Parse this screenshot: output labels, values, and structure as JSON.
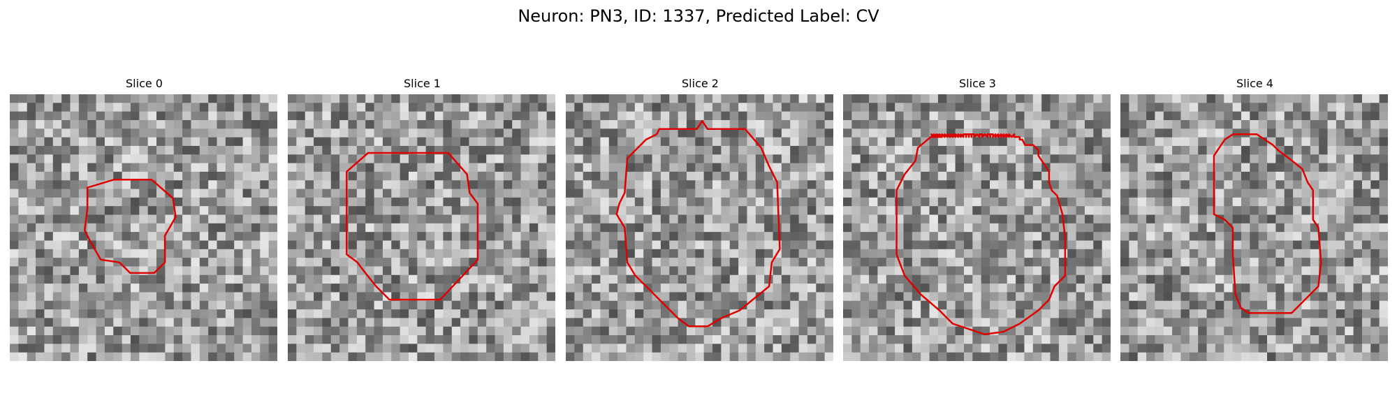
{
  "figure": {
    "title": "Neuron: PN3, ID: 1337, Predicted Label: CV"
  },
  "panels": [
    {
      "title": "Slice 0",
      "seed": 11,
      "grid": 31,
      "contour_color": "#e00000",
      "contour": [
        [
          0.29,
          0.35
        ],
        [
          0.39,
          0.32
        ],
        [
          0.53,
          0.32
        ],
        [
          0.61,
          0.39
        ],
        [
          0.62,
          0.46
        ],
        [
          0.58,
          0.53
        ],
        [
          0.58,
          0.63
        ],
        [
          0.54,
          0.67
        ],
        [
          0.45,
          0.67
        ],
        [
          0.41,
          0.63
        ],
        [
          0.34,
          0.62
        ],
        [
          0.3,
          0.55
        ],
        [
          0.28,
          0.51
        ],
        [
          0.29,
          0.43
        ]
      ]
    },
    {
      "title": "Slice 1",
      "seed": 23,
      "grid": 31,
      "contour_color": "#e00000",
      "contour": [
        [
          0.22,
          0.29
        ],
        [
          0.3,
          0.22
        ],
        [
          0.6,
          0.22
        ],
        [
          0.67,
          0.3
        ],
        [
          0.68,
          0.37
        ],
        [
          0.71,
          0.41
        ],
        [
          0.71,
          0.62
        ],
        [
          0.57,
          0.77
        ],
        [
          0.38,
          0.77
        ],
        [
          0.33,
          0.72
        ],
        [
          0.29,
          0.67
        ],
        [
          0.26,
          0.63
        ],
        [
          0.22,
          0.6
        ]
      ]
    },
    {
      "title": "Slice 2",
      "seed": 37,
      "grid": 31,
      "contour_color": "#e00000",
      "contour": [
        [
          0.23,
          0.24
        ],
        [
          0.3,
          0.17
        ],
        [
          0.34,
          0.15
        ],
        [
          0.35,
          0.13
        ],
        [
          0.49,
          0.13
        ],
        [
          0.51,
          0.1
        ],
        [
          0.53,
          0.13
        ],
        [
          0.67,
          0.13
        ],
        [
          0.73,
          0.2
        ],
        [
          0.76,
          0.27
        ],
        [
          0.79,
          0.33
        ],
        [
          0.8,
          0.58
        ],
        [
          0.77,
          0.63
        ],
        [
          0.76,
          0.72
        ],
        [
          0.65,
          0.81
        ],
        [
          0.58,
          0.84
        ],
        [
          0.53,
          0.87
        ],
        [
          0.46,
          0.87
        ],
        [
          0.42,
          0.84
        ],
        [
          0.4,
          0.82
        ],
        [
          0.26,
          0.68
        ],
        [
          0.23,
          0.63
        ],
        [
          0.22,
          0.5
        ],
        [
          0.19,
          0.45
        ],
        [
          0.2,
          0.41
        ],
        [
          0.22,
          0.37
        ]
      ]
    },
    {
      "title": "Slice 3",
      "seed": 53,
      "grid": 31,
      "contour_color": "#e00000",
      "contour": [
        [
          0.23,
          0.3
        ],
        [
          0.27,
          0.25
        ],
        [
          0.28,
          0.2
        ],
        [
          0.34,
          0.15
        ],
        [
          0.34,
          0.16
        ],
        [
          0.35,
          0.16
        ],
        [
          0.36,
          0.16
        ],
        [
          0.35,
          0.16
        ],
        [
          0.35,
          0.16
        ],
        [
          0.36,
          0.15
        ],
        [
          0.34,
          0.16
        ],
        [
          0.35,
          0.16
        ],
        [
          0.34,
          0.16
        ],
        [
          0.34,
          0.16
        ],
        [
          0.34,
          0.16
        ],
        [
          0.34,
          0.16
        ],
        [
          0.35,
          0.15
        ],
        [
          0.33,
          0.16
        ],
        [
          0.34,
          0.16
        ],
        [
          0.34,
          0.16
        ],
        [
          0.34,
          0.16
        ],
        [
          0.34,
          0.16
        ],
        [
          0.33,
          0.15
        ],
        [
          0.34,
          0.16
        ],
        [
          0.34,
          0.16
        ],
        [
          0.34,
          0.15
        ],
        [
          0.34,
          0.16
        ],
        [
          0.35,
          0.15
        ],
        [
          0.34,
          0.16
        ],
        [
          0.35,
          0.16
        ],
        [
          0.35,
          0.15
        ],
        [
          0.36,
          0.16
        ],
        [
          0.35,
          0.15
        ],
        [
          0.35,
          0.16
        ],
        [
          0.36,
          0.16
        ],
        [
          0.36,
          0.15
        ],
        [
          0.36,
          0.16
        ],
        [
          0.37,
          0.16
        ],
        [
          0.36,
          0.15
        ],
        [
          0.37,
          0.16
        ],
        [
          0.37,
          0.16
        ],
        [
          0.37,
          0.15
        ],
        [
          0.38,
          0.16
        ],
        [
          0.37,
          0.15
        ],
        [
          0.38,
          0.16
        ],
        [
          0.38,
          0.16
        ],
        [
          0.38,
          0.15
        ],
        [
          0.39,
          0.16
        ],
        [
          0.38,
          0.15
        ],
        [
          0.39,
          0.16
        ],
        [
          0.39,
          0.15
        ],
        [
          0.39,
          0.15
        ],
        [
          0.4,
          0.16
        ],
        [
          0.4,
          0.15
        ],
        [
          0.4,
          0.16
        ],
        [
          0.4,
          0.15
        ],
        [
          0.41,
          0.16
        ],
        [
          0.41,
          0.15
        ],
        [
          0.41,
          0.15
        ],
        [
          0.42,
          0.16
        ],
        [
          0.42,
          0.15
        ],
        [
          0.42,
          0.15
        ],
        [
          0.43,
          0.16
        ],
        [
          0.43,
          0.15
        ],
        [
          0.43,
          0.15
        ],
        [
          0.44,
          0.16
        ],
        [
          0.44,
          0.15
        ],
        [
          0.44,
          0.15
        ],
        [
          0.45,
          0.16
        ],
        [
          0.45,
          0.15
        ],
        [
          0.45,
          0.15
        ],
        [
          0.46,
          0.15
        ],
        [
          0.46,
          0.16
        ],
        [
          0.46,
          0.15
        ],
        [
          0.47,
          0.15
        ],
        [
          0.47,
          0.16
        ],
        [
          0.47,
          0.15
        ],
        [
          0.48,
          0.15
        ],
        [
          0.48,
          0.16
        ],
        [
          0.48,
          0.15
        ],
        [
          0.49,
          0.15
        ],
        [
          0.49,
          0.15
        ],
        [
          0.49,
          0.16
        ],
        [
          0.5,
          0.15
        ],
        [
          0.5,
          0.15
        ],
        [
          0.5,
          0.15
        ],
        [
          0.51,
          0.16
        ],
        [
          0.51,
          0.15
        ],
        [
          0.51,
          0.15
        ],
        [
          0.52,
          0.15
        ],
        [
          0.52,
          0.15
        ],
        [
          0.52,
          0.16
        ],
        [
          0.53,
          0.15
        ],
        [
          0.53,
          0.15
        ],
        [
          0.53,
          0.15
        ],
        [
          0.54,
          0.16
        ],
        [
          0.54,
          0.15
        ],
        [
          0.54,
          0.15
        ],
        [
          0.55,
          0.15
        ],
        [
          0.55,
          0.16
        ],
        [
          0.55,
          0.15
        ],
        [
          0.56,
          0.15
        ],
        [
          0.56,
          0.15
        ],
        [
          0.56,
          0.16
        ],
        [
          0.57,
          0.15
        ],
        [
          0.57,
          0.15
        ],
        [
          0.57,
          0.16
        ],
        [
          0.58,
          0.15
        ],
        [
          0.58,
          0.15
        ],
        [
          0.58,
          0.16
        ],
        [
          0.59,
          0.15
        ],
        [
          0.59,
          0.16
        ],
        [
          0.59,
          0.15
        ],
        [
          0.6,
          0.16
        ],
        [
          0.6,
          0.15
        ],
        [
          0.6,
          0.16
        ],
        [
          0.61,
          0.15
        ],
        [
          0.61,
          0.16
        ],
        [
          0.61,
          0.15
        ],
        [
          0.62,
          0.16
        ],
        [
          0.62,
          0.16
        ],
        [
          0.62,
          0.15
        ],
        [
          0.63,
          0.16
        ],
        [
          0.63,
          0.16
        ],
        [
          0.63,
          0.16
        ],
        [
          0.64,
          0.15
        ],
        [
          0.64,
          0.16
        ],
        [
          0.64,
          0.16
        ],
        [
          0.65,
          0.16
        ],
        [
          0.65,
          0.16
        ],
        [
          0.65,
          0.16
        ],
        [
          0.66,
          0.16
        ],
        [
          0.66,
          0.16
        ],
        [
          0.66,
          0.17
        ],
        [
          0.67,
          0.17
        ],
        [
          0.68,
          0.19
        ],
        [
          0.71,
          0.19
        ],
        [
          0.73,
          0.21
        ],
        [
          0.73,
          0.23
        ],
        [
          0.75,
          0.26
        ],
        [
          0.77,
          0.29
        ],
        [
          0.77,
          0.33
        ],
        [
          0.78,
          0.36
        ],
        [
          0.8,
          0.38
        ],
        [
          0.82,
          0.45
        ],
        [
          0.83,
          0.54
        ],
        [
          0.83,
          0.68
        ],
        [
          0.79,
          0.72
        ],
        [
          0.77,
          0.77
        ],
        [
          0.73,
          0.81
        ],
        [
          0.66,
          0.86
        ],
        [
          0.6,
          0.89
        ],
        [
          0.53,
          0.9
        ],
        [
          0.47,
          0.88
        ],
        [
          0.41,
          0.86
        ],
        [
          0.38,
          0.83
        ],
        [
          0.36,
          0.81
        ],
        [
          0.29,
          0.75
        ],
        [
          0.23,
          0.68
        ],
        [
          0.2,
          0.6
        ],
        [
          0.2,
          0.47
        ],
        [
          0.2,
          0.36
        ],
        [
          0.23,
          0.3
        ]
      ]
    },
    {
      "title": "Slice 4",
      "seed": 71,
      "grid": 31,
      "contour_color": "#e00000",
      "contour": [
        [
          0.39,
          0.17
        ],
        [
          0.42,
          0.15
        ],
        [
          0.51,
          0.15
        ],
        [
          0.57,
          0.19
        ],
        [
          0.59,
          0.21
        ],
        [
          0.63,
          0.24
        ],
        [
          0.68,
          0.28
        ],
        [
          0.7,
          0.33
        ],
        [
          0.72,
          0.36
        ],
        [
          0.72,
          0.47
        ],
        [
          0.74,
          0.5
        ],
        [
          0.75,
          0.63
        ],
        [
          0.74,
          0.72
        ],
        [
          0.64,
          0.82
        ],
        [
          0.48,
          0.82
        ],
        [
          0.45,
          0.8
        ],
        [
          0.43,
          0.75
        ],
        [
          0.42,
          0.6
        ],
        [
          0.42,
          0.5
        ],
        [
          0.39,
          0.47
        ],
        [
          0.35,
          0.45
        ],
        [
          0.35,
          0.23
        ]
      ]
    }
  ]
}
